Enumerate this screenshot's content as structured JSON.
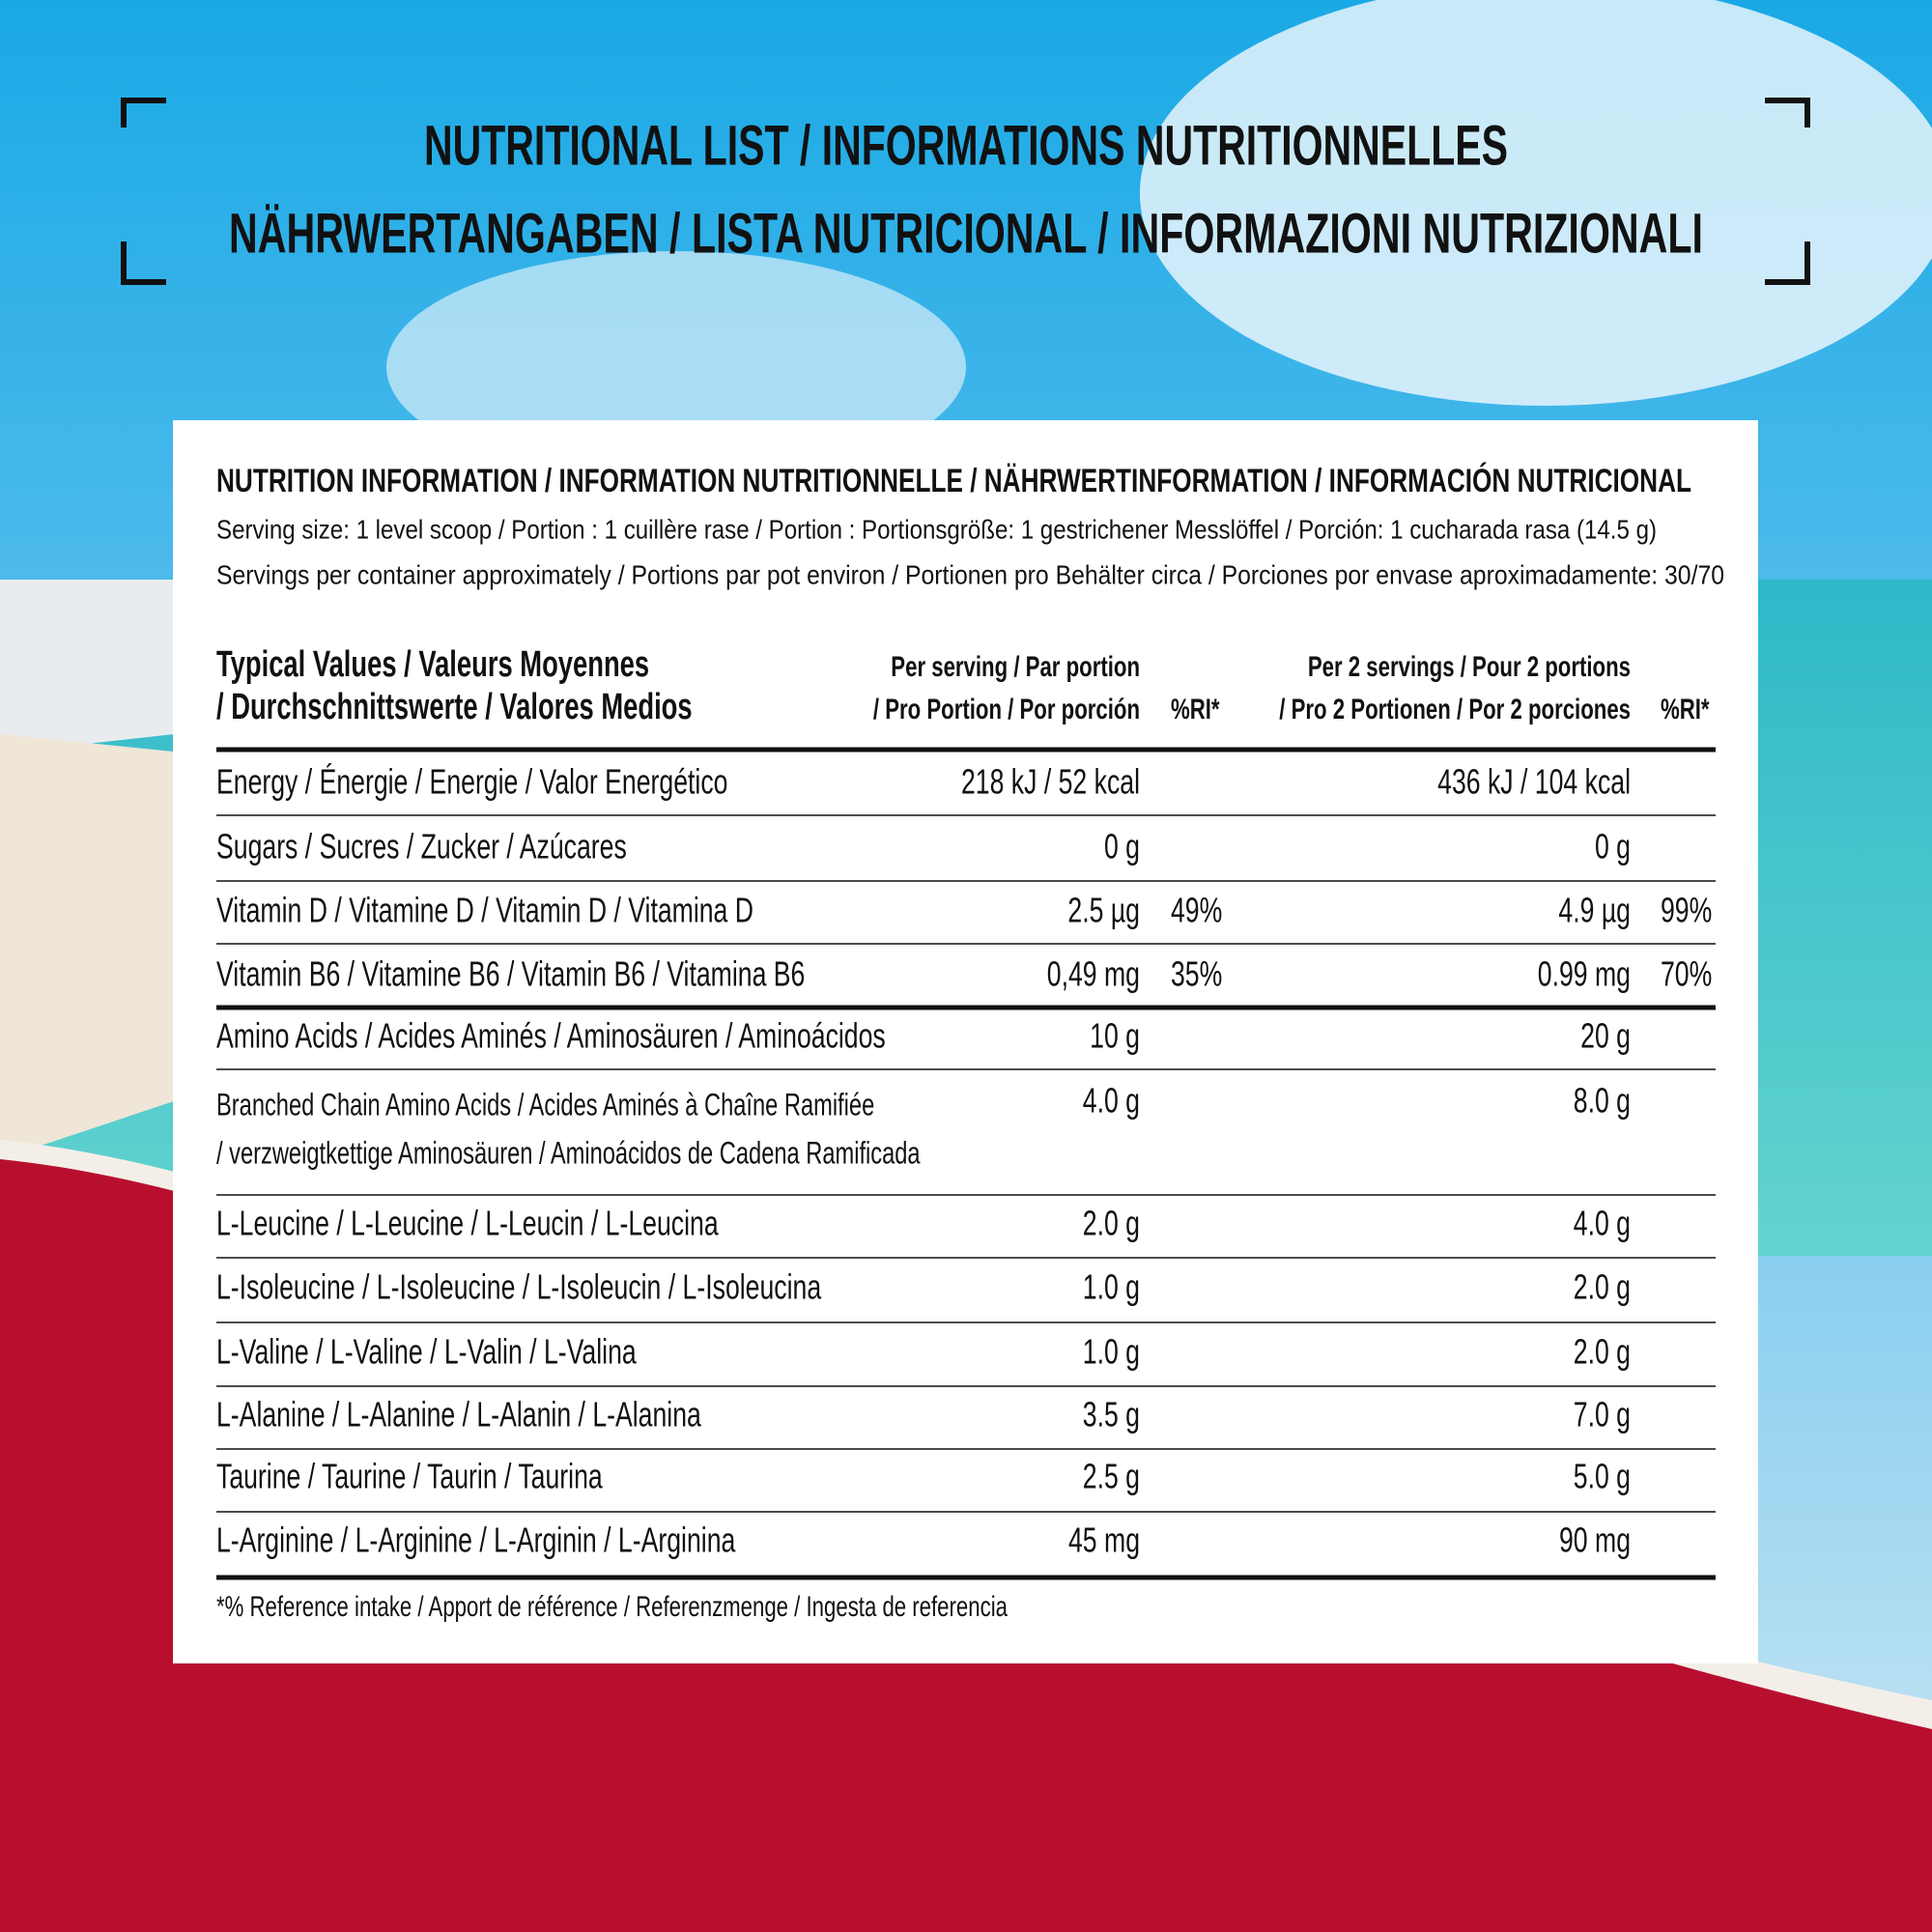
{
  "header": {
    "lines": [
      "NUTRITIONAL LIST / INFORMATIONS NUTRITIONNELLES",
      "NÄHRWERTANGABEN / LISTA NUTRICIONAL / INFORMAZIONI NUTRIZIONALI"
    ]
  },
  "panel": {
    "title": "NUTRITION INFORMATION / INFORMATION NUTRITIONNELLE / NÄHRWERTINFORMATION / INFORMACIÓN NUTRICIONAL",
    "serving_size": "Serving size: 1 level scoop / Portion : 1 cuillère rase / Portion : Portionsgröße: 1 gestrichener Messlöffel / Porción: 1 cucharada rasa (14.5 g)",
    "servings_per_container": "Servings per container approximately / Portions par pot environ / Portionen pro Behälter circa / Porciones por envase aproximadamente: 30/70"
  },
  "table": {
    "columns": [
      [
        "Typical Values / Valeurs Moyennes",
        "/ Durchschnittswerte / Valores Medios"
      ],
      [
        "Per serving / Par portion",
        "/ Pro Portion / Por porción"
      ],
      [
        "%RI*"
      ],
      [
        "Per 2 servings / Pour 2 portions",
        "/ Pro 2 Portionen / Por 2 porciones"
      ],
      [
        "%RI*"
      ]
    ],
    "rows": [
      {
        "label": [
          "Energy / Énergie / Energie / Valor Energético"
        ],
        "per_serving": "218 kJ / 52 kcal",
        "per_2_servings": "436 kJ / 104 kcal"
      },
      {
        "label": [
          "Sugars / Sucres / Zucker / Azúcares"
        ],
        "per_serving": "0 g",
        "per_2_servings": "0 g"
      },
      {
        "label": [
          "Vitamin D / Vitamine D / Vitamin D / Vitamina D"
        ],
        "per_serving": "2.5 µg",
        "ri": "49%",
        "per_2_servings": "4.9 µg",
        "ri_2": "99%"
      },
      {
        "label": [
          "Vitamin B6 / Vitamine B6 / Vitamin B6 / Vitamina B6"
        ],
        "per_serving": "0,49 mg",
        "ri": "35%",
        "per_2_servings": "0.99 mg",
        "ri_2": "70%"
      },
      {
        "label": [
          "Amino Acids / Acides Aminés / Aminosäuren / Aminoácidos"
        ],
        "per_serving": "10 g",
        "per_2_servings": "20 g"
      },
      {
        "label": [
          "Branched Chain Amino Acids / Acides Aminés à Chaîne Ramifiée",
          "/ verzweigtkettige Aminosäuren / Aminoácidos de Cadena Ramificada"
        ],
        "per_serving": "4.0 g",
        "per_2_servings": "8.0 g"
      },
      {
        "label": [
          "L-Leucine / L-Leucine / L-Leucin / L-Leucina"
        ],
        "per_serving": "2.0 g",
        "per_2_servings": "4.0 g"
      },
      {
        "label": [
          "L-Isoleucine / L-Isoleucine / L-Isoleucin / L-Isoleucina"
        ],
        "per_serving": "1.0 g",
        "per_2_servings": "2.0 g"
      },
      {
        "label": [
          "L-Valine / L-Valine / L-Valin / L-Valina"
        ],
        "per_serving": "1.0 g",
        "per_2_servings": "2.0 g"
      },
      {
        "label": [
          "L-Alanine / L-Alanine / L-Alanin / L-Alanina"
        ],
        "per_serving": "3.5 g",
        "per_2_servings": "7.0 g"
      },
      {
        "label": [
          "Taurine / Taurine / Taurin / Taurina"
        ],
        "per_serving": "2.5 g",
        "per_2_servings": "5.0 g"
      },
      {
        "label": [
          "L-Arginine / L-Arginine / L-Arginin / L-Arginina"
        ],
        "per_serving": "45 mg",
        "per_2_servings": "90 mg"
      }
    ]
  },
  "footnote": "*% Reference intake / Apport de référence  / Referenzmenge / Ingesta de referencia"
}
